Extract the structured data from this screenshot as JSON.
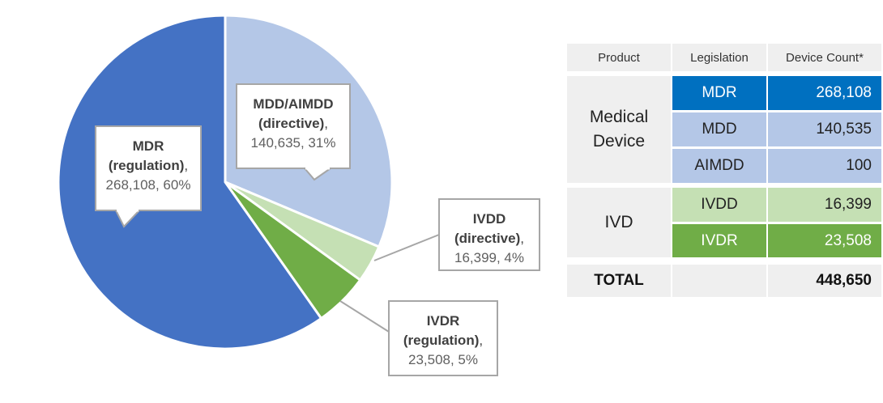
{
  "chart_data": {
    "type": "pie",
    "title": "",
    "slices": [
      {
        "category": "MDR",
        "descriptor": "(regulation),",
        "value": 268108,
        "value_label": "268,108",
        "percent_label": "60%",
        "color": "#4472c4"
      },
      {
        "category": "MDD/AIMDD",
        "descriptor": "(directive),",
        "value": 140635,
        "value_label": "140,635",
        "percent_label": "31%",
        "color": "#b4c7e7"
      },
      {
        "category": "IVDD",
        "descriptor": "(directive),",
        "value": 16399,
        "value_label": "16,399",
        "percent_label": "4%",
        "color": "#c5e0b4"
      },
      {
        "category": "IVDR",
        "descriptor": "(regulation),",
        "value": 23508,
        "value_label": "23,508",
        "percent_label": "5%",
        "color": "#70ad47"
      }
    ]
  },
  "table": {
    "headers": {
      "product": "Product",
      "legislation": "Legislation",
      "count": "Device Count*"
    },
    "groups": [
      {
        "product_line1": "Medical",
        "product_line2": "Device",
        "rows": [
          {
            "legislation": "MDR",
            "count": "268,108",
            "color": "#0070c0",
            "text_color": "#ffffff"
          },
          {
            "legislation": "MDD",
            "count": "140,535",
            "color": "#b4c7e7",
            "text_color": "#222222"
          },
          {
            "legislation": "AIMDD",
            "count": "100",
            "color": "#b4c7e7",
            "text_color": "#222222"
          }
        ]
      },
      {
        "product_line1": "IVD",
        "rows": [
          {
            "legislation": "IVDD",
            "count": "16,399",
            "color": "#c5e0b4",
            "text_color": "#222222"
          },
          {
            "legislation": "IVDR",
            "count": "23,508",
            "color": "#70ad47",
            "text_color": "#ffffff"
          }
        ]
      }
    ],
    "total": {
      "label": "TOTAL",
      "value": "448,650"
    }
  }
}
